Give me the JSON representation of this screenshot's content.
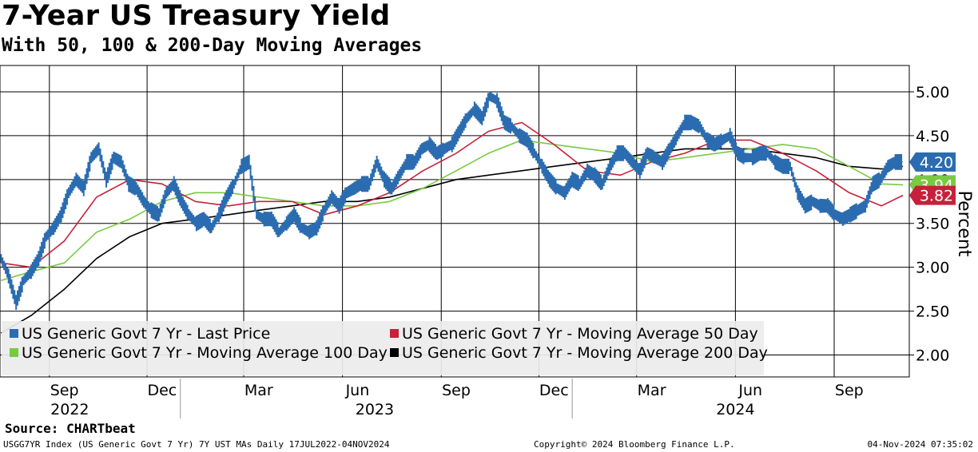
{
  "header": {
    "title": "7-Year US Treasury Yield",
    "subtitle": "With 50, 100 & 200-Day Moving Averages"
  },
  "source": "Source: CHARTbeat",
  "footer": {
    "left": "USGG7YR Index (US Generic Govt 7 Yr) 7Y UST MAs  Daily 17JUL2022-04NOV2024",
    "middle": "Copyright© 2024 Bloomberg Finance L.P.",
    "right": "04-Nov-2024 07:35:02"
  },
  "colors": {
    "last_price": "#2b6cb0",
    "ma50": "#c8203a",
    "ma100": "#7ac943",
    "ma200": "#000000",
    "grid": "#000000",
    "legend_bg": "#ebebeb"
  },
  "chart_data": {
    "type": "line",
    "ylabel": "Percent",
    "ylim": [
      1.75,
      5.3
    ],
    "y_ticks": [
      "5.00",
      "4.50",
      "4.00",
      "3.50",
      "3.00",
      "2.50",
      "2.00"
    ],
    "y_tick_values": [
      5.0,
      4.5,
      4.0,
      3.5,
      3.0,
      2.5,
      2.0
    ],
    "x_range": [
      "2022-07-17",
      "2024-11-04"
    ],
    "month_ticks": [
      {
        "label": "Sep",
        "date": "2022-09-15"
      },
      {
        "label": "Dec",
        "date": "2022-12-15"
      },
      {
        "label": "Mar",
        "date": "2023-03-15"
      },
      {
        "label": "Jun",
        "date": "2023-06-15"
      },
      {
        "label": "Sep",
        "date": "2023-09-15"
      },
      {
        "label": "Dec",
        "date": "2023-12-15"
      },
      {
        "label": "Mar",
        "date": "2024-03-15"
      },
      {
        "label": "Jun",
        "date": "2024-06-15"
      },
      {
        "label": "Sep",
        "date": "2024-09-15"
      }
    ],
    "year_labels": [
      {
        "label": "2022",
        "date": "2022-09-20"
      },
      {
        "label": "2023",
        "date": "2023-07-01"
      },
      {
        "label": "2024",
        "date": "2024-06-01"
      }
    ],
    "year_separators": [
      "2023-01-01",
      "2024-01-01"
    ],
    "month_gridlines": [
      "2022-09-01",
      "2022-12-01",
      "2023-03-01",
      "2023-06-01",
      "2023-09-01",
      "2023-12-01",
      "2024-03-01",
      "2024-06-01",
      "2024-09-01"
    ],
    "legend_position": "bottom-left",
    "series": [
      {
        "name": "US Generic Govt 7 Yr - Last Price",
        "color_key": "last_price",
        "style": "bar",
        "points": [
          [
            "2022-07-18",
            3.1
          ],
          [
            "2022-07-25",
            2.9
          ],
          [
            "2022-08-01",
            2.6
          ],
          [
            "2022-08-08",
            2.85
          ],
          [
            "2022-08-15",
            2.95
          ],
          [
            "2022-08-22",
            3.1
          ],
          [
            "2022-08-29",
            3.35
          ],
          [
            "2022-09-05",
            3.45
          ],
          [
            "2022-09-12",
            3.6
          ],
          [
            "2022-09-19",
            3.85
          ],
          [
            "2022-09-26",
            4.0
          ],
          [
            "2022-10-03",
            3.9
          ],
          [
            "2022-10-10",
            4.25
          ],
          [
            "2022-10-17",
            4.35
          ],
          [
            "2022-10-24",
            4.0
          ],
          [
            "2022-10-31",
            4.25
          ],
          [
            "2022-11-07",
            4.2
          ],
          [
            "2022-11-14",
            3.95
          ],
          [
            "2022-11-21",
            3.9
          ],
          [
            "2022-11-28",
            3.75
          ],
          [
            "2022-12-05",
            3.65
          ],
          [
            "2022-12-12",
            3.6
          ],
          [
            "2022-12-19",
            3.85
          ],
          [
            "2022-12-26",
            3.95
          ],
          [
            "2023-01-02",
            3.75
          ],
          [
            "2023-01-09",
            3.6
          ],
          [
            "2023-01-16",
            3.5
          ],
          [
            "2023-01-23",
            3.55
          ],
          [
            "2023-01-30",
            3.45
          ],
          [
            "2023-02-06",
            3.6
          ],
          [
            "2023-02-13",
            3.8
          ],
          [
            "2023-02-20",
            3.95
          ],
          [
            "2023-02-27",
            4.15
          ],
          [
            "2023-03-06",
            4.2
          ],
          [
            "2023-03-13",
            3.6
          ],
          [
            "2023-03-20",
            3.55
          ],
          [
            "2023-03-27",
            3.55
          ],
          [
            "2023-04-03",
            3.4
          ],
          [
            "2023-04-10",
            3.5
          ],
          [
            "2023-04-17",
            3.6
          ],
          [
            "2023-04-24",
            3.45
          ],
          [
            "2023-05-01",
            3.4
          ],
          [
            "2023-05-08",
            3.45
          ],
          [
            "2023-05-15",
            3.65
          ],
          [
            "2023-05-22",
            3.8
          ],
          [
            "2023-05-29",
            3.7
          ],
          [
            "2023-06-05",
            3.85
          ],
          [
            "2023-06-12",
            3.9
          ],
          [
            "2023-06-19",
            3.95
          ],
          [
            "2023-06-26",
            3.95
          ],
          [
            "2023-07-03",
            4.2
          ],
          [
            "2023-07-10",
            4.0
          ],
          [
            "2023-07-17",
            3.9
          ],
          [
            "2023-07-24",
            4.05
          ],
          [
            "2023-07-31",
            4.2
          ],
          [
            "2023-08-07",
            4.2
          ],
          [
            "2023-08-14",
            4.35
          ],
          [
            "2023-08-21",
            4.4
          ],
          [
            "2023-08-28",
            4.3
          ],
          [
            "2023-09-04",
            4.35
          ],
          [
            "2023-09-11",
            4.4
          ],
          [
            "2023-09-18",
            4.55
          ],
          [
            "2023-09-25",
            4.7
          ],
          [
            "2023-10-02",
            4.8
          ],
          [
            "2023-10-09",
            4.7
          ],
          [
            "2023-10-16",
            4.95
          ],
          [
            "2023-10-23",
            4.9
          ],
          [
            "2023-10-30",
            4.65
          ],
          [
            "2023-11-06",
            4.6
          ],
          [
            "2023-11-13",
            4.5
          ],
          [
            "2023-11-20",
            4.45
          ],
          [
            "2023-11-27",
            4.3
          ],
          [
            "2023-12-04",
            4.15
          ],
          [
            "2023-12-11",
            4.0
          ],
          [
            "2023-12-18",
            3.9
          ],
          [
            "2023-12-25",
            3.85
          ],
          [
            "2024-01-01",
            4.0
          ],
          [
            "2024-01-08",
            3.95
          ],
          [
            "2024-01-15",
            4.1
          ],
          [
            "2024-01-22",
            4.05
          ],
          [
            "2024-01-29",
            3.95
          ],
          [
            "2024-02-05",
            4.15
          ],
          [
            "2024-02-12",
            4.3
          ],
          [
            "2024-02-19",
            4.3
          ],
          [
            "2024-02-26",
            4.2
          ],
          [
            "2024-03-04",
            4.1
          ],
          [
            "2024-03-11",
            4.3
          ],
          [
            "2024-03-18",
            4.25
          ],
          [
            "2024-03-25",
            4.2
          ],
          [
            "2024-04-01",
            4.35
          ],
          [
            "2024-04-08",
            4.5
          ],
          [
            "2024-04-15",
            4.65
          ],
          [
            "2024-04-22",
            4.65
          ],
          [
            "2024-04-29",
            4.6
          ],
          [
            "2024-05-06",
            4.45
          ],
          [
            "2024-05-13",
            4.4
          ],
          [
            "2024-05-20",
            4.45
          ],
          [
            "2024-05-27",
            4.5
          ],
          [
            "2024-06-03",
            4.3
          ],
          [
            "2024-06-10",
            4.25
          ],
          [
            "2024-06-17",
            4.25
          ],
          [
            "2024-06-24",
            4.3
          ],
          [
            "2024-07-01",
            4.3
          ],
          [
            "2024-07-08",
            4.2
          ],
          [
            "2024-07-15",
            4.15
          ],
          [
            "2024-07-22",
            4.15
          ],
          [
            "2024-07-29",
            3.85
          ],
          [
            "2024-08-05",
            3.7
          ],
          [
            "2024-08-12",
            3.75
          ],
          [
            "2024-08-19",
            3.7
          ],
          [
            "2024-08-26",
            3.7
          ],
          [
            "2024-09-02",
            3.6
          ],
          [
            "2024-09-09",
            3.55
          ],
          [
            "2024-09-16",
            3.6
          ],
          [
            "2024-09-23",
            3.65
          ],
          [
            "2024-09-30",
            3.7
          ],
          [
            "2024-10-07",
            3.95
          ],
          [
            "2024-10-14",
            4.0
          ],
          [
            "2024-10-21",
            4.15
          ],
          [
            "2024-10-28",
            4.2
          ],
          [
            "2024-11-04",
            4.2
          ]
        ]
      },
      {
        "name": "US Generic Govt 7 Yr - Moving Average 50 Day",
        "color_key": "ma50",
        "style": "line",
        "points": [
          [
            "2022-07-18",
            3.05
          ],
          [
            "2022-08-15",
            3.0
          ],
          [
            "2022-09-15",
            3.3
          ],
          [
            "2022-10-15",
            3.8
          ],
          [
            "2022-11-15",
            4.0
          ],
          [
            "2022-12-15",
            3.95
          ],
          [
            "2023-01-15",
            3.75
          ],
          [
            "2023-02-15",
            3.7
          ],
          [
            "2023-03-15",
            3.75
          ],
          [
            "2023-04-15",
            3.75
          ],
          [
            "2023-05-15",
            3.6
          ],
          [
            "2023-06-15",
            3.7
          ],
          [
            "2023-07-15",
            3.85
          ],
          [
            "2023-08-15",
            4.1
          ],
          [
            "2023-09-15",
            4.3
          ],
          [
            "2023-10-15",
            4.55
          ],
          [
            "2023-11-15",
            4.65
          ],
          [
            "2023-12-15",
            4.4
          ],
          [
            "2024-01-15",
            4.1
          ],
          [
            "2024-02-15",
            4.05
          ],
          [
            "2024-03-15",
            4.2
          ],
          [
            "2024-04-15",
            4.3
          ],
          [
            "2024-05-15",
            4.45
          ],
          [
            "2024-06-15",
            4.45
          ],
          [
            "2024-07-15",
            4.3
          ],
          [
            "2024-08-15",
            4.1
          ],
          [
            "2024-09-15",
            3.85
          ],
          [
            "2024-10-15",
            3.7
          ],
          [
            "2024-11-04",
            3.82
          ]
        ]
      },
      {
        "name": "US Generic Govt 7 Yr - Moving Average 100 Day",
        "color_key": "ma100",
        "style": "line",
        "points": [
          [
            "2022-07-18",
            2.85
          ],
          [
            "2022-08-15",
            2.95
          ],
          [
            "2022-09-15",
            3.05
          ],
          [
            "2022-10-15",
            3.4
          ],
          [
            "2022-11-15",
            3.55
          ],
          [
            "2022-12-15",
            3.75
          ],
          [
            "2023-01-15",
            3.85
          ],
          [
            "2023-02-15",
            3.85
          ],
          [
            "2023-03-15",
            3.8
          ],
          [
            "2023-04-15",
            3.75
          ],
          [
            "2023-05-15",
            3.7
          ],
          [
            "2023-06-15",
            3.7
          ],
          [
            "2023-07-15",
            3.75
          ],
          [
            "2023-08-15",
            3.9
          ],
          [
            "2023-09-15",
            4.1
          ],
          [
            "2023-10-15",
            4.3
          ],
          [
            "2023-11-15",
            4.45
          ],
          [
            "2023-12-15",
            4.4
          ],
          [
            "2024-01-15",
            4.35
          ],
          [
            "2024-02-15",
            4.3
          ],
          [
            "2024-03-15",
            4.2
          ],
          [
            "2024-04-15",
            4.25
          ],
          [
            "2024-05-15",
            4.3
          ],
          [
            "2024-06-15",
            4.35
          ],
          [
            "2024-07-15",
            4.4
          ],
          [
            "2024-08-15",
            4.35
          ],
          [
            "2024-09-15",
            4.15
          ],
          [
            "2024-10-15",
            3.95
          ],
          [
            "2024-11-04",
            3.94
          ]
        ]
      },
      {
        "name": "US Generic Govt 7 Yr - Moving Average 200 Day",
        "color_key": "ma200",
        "style": "line",
        "points": [
          [
            "2022-07-18",
            2.25
          ],
          [
            "2022-08-15",
            2.45
          ],
          [
            "2022-09-15",
            2.75
          ],
          [
            "2022-10-15",
            3.1
          ],
          [
            "2022-11-15",
            3.35
          ],
          [
            "2022-12-15",
            3.5
          ],
          [
            "2023-01-15",
            3.55
          ],
          [
            "2023-02-15",
            3.6
          ],
          [
            "2023-03-15",
            3.65
          ],
          [
            "2023-04-15",
            3.7
          ],
          [
            "2023-05-15",
            3.75
          ],
          [
            "2023-06-15",
            3.75
          ],
          [
            "2023-07-15",
            3.8
          ],
          [
            "2023-08-15",
            3.9
          ],
          [
            "2023-09-15",
            4.0
          ],
          [
            "2023-10-15",
            4.05
          ],
          [
            "2023-11-15",
            4.1
          ],
          [
            "2023-12-15",
            4.15
          ],
          [
            "2024-01-15",
            4.2
          ],
          [
            "2024-02-15",
            4.25
          ],
          [
            "2024-03-15",
            4.3
          ],
          [
            "2024-04-15",
            4.35
          ],
          [
            "2024-05-15",
            4.35
          ],
          [
            "2024-06-15",
            4.35
          ],
          [
            "2024-07-15",
            4.3
          ],
          [
            "2024-08-15",
            4.25
          ],
          [
            "2024-09-15",
            4.15
          ],
          [
            "2024-10-15",
            4.12
          ],
          [
            "2024-11-04",
            4.15
          ]
        ]
      }
    ],
    "end_labels": [
      {
        "text": "4.20",
        "value": 4.2,
        "color_key": "last_price",
        "text_color": "#ffffff"
      },
      {
        "text": "3.94",
        "value": 3.94,
        "color_key": "ma100",
        "text_color": "#ffffff"
      },
      {
        "text": "3.82",
        "value": 3.82,
        "color_key": "ma50",
        "text_color": "#ffffff"
      }
    ]
  }
}
